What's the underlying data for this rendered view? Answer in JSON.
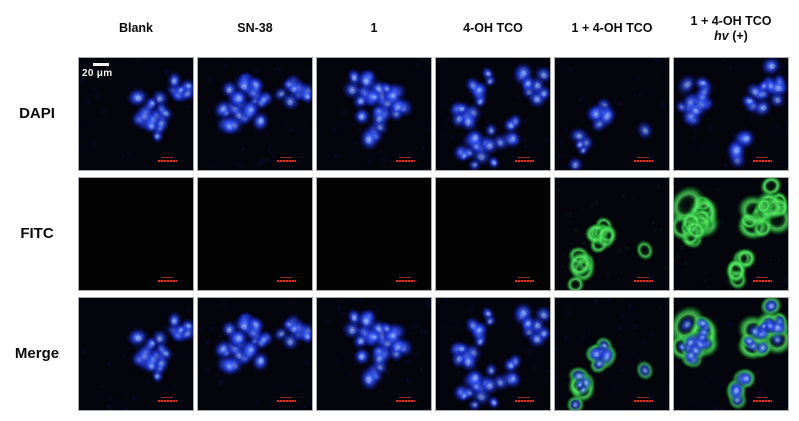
{
  "figure": {
    "title": "fluorescence-microscopy-grid",
    "column_headers": [
      {
        "line1": "Blank",
        "line2_italic": "",
        "line2_rest": ""
      },
      {
        "line1": "SN-38",
        "line2_italic": "",
        "line2_rest": ""
      },
      {
        "line1": "1",
        "line2_italic": "",
        "line2_rest": ""
      },
      {
        "line1": "4-OH TCO",
        "line2_italic": "",
        "line2_rest": ""
      },
      {
        "line1": "1 + 4-OH TCO",
        "line2_italic": "",
        "line2_rest": ""
      },
      {
        "line1": "1 + 4-OH TCO",
        "line2_italic": "hv",
        "line2_rest": " (+)"
      }
    ],
    "row_labels": [
      "DAPI",
      "FITC",
      "Merge"
    ],
    "scale_bar_label": "20 μm"
  },
  "colors": {
    "dapi_blue": "#2a4cf0",
    "fitc_green": "#46e05a",
    "scale_bar_red": "#c01818",
    "panel_background": "#04040c",
    "fitc_blank_background": "#020302",
    "page_background": "#ffffff",
    "label_text": "#0a0a0a"
  },
  "panels": {
    "columns": [
      {
        "header": "Blank",
        "cell_count": 28,
        "seed": 101,
        "green_channel": false
      },
      {
        "header": "SN-38",
        "cell_count": 48,
        "seed": 202,
        "green_channel": false
      },
      {
        "header": "1",
        "cell_count": 36,
        "seed": 303,
        "green_channel": false
      },
      {
        "header": "4-OH TCO",
        "cell_count": 42,
        "seed": 404,
        "green_channel": false
      },
      {
        "header": "1 + 4-OH TCO",
        "cell_count": 15,
        "seed": 505,
        "green_channel": true
      },
      {
        "header": "1 + 4-OH TCO hv (+)",
        "cell_count": 36,
        "seed": 606,
        "green_channel": true
      }
    ],
    "rows": [
      {
        "label": "DAPI",
        "show_blue": true,
        "show_green": false
      },
      {
        "label": "FITC",
        "show_blue": false,
        "show_green": true
      },
      {
        "label": "Merge",
        "show_blue": true,
        "show_green": true
      }
    ],
    "red_scale_bar_on_every_panel": true,
    "white_scale_bar_panel": {
      "row": 0,
      "col": 0
    }
  }
}
